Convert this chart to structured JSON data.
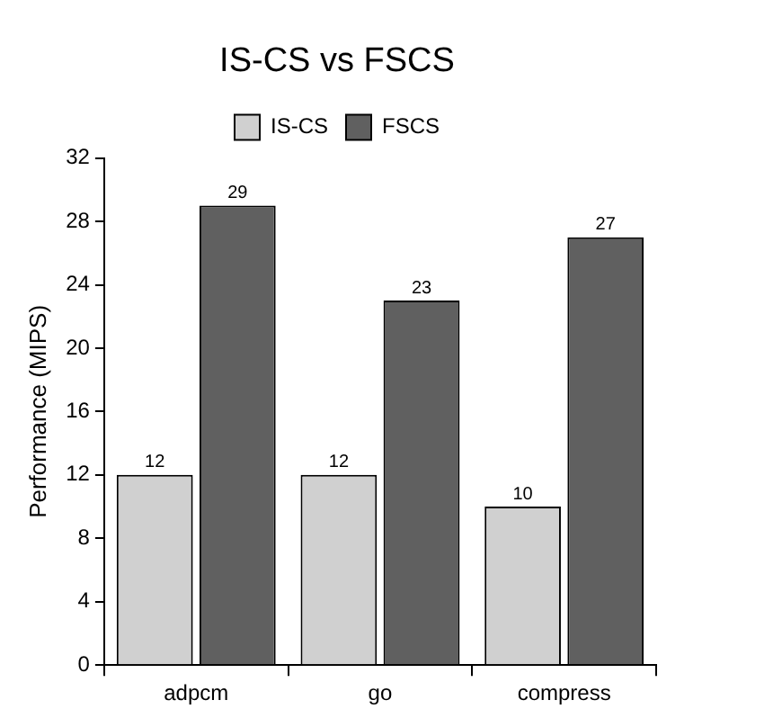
{
  "chart_data": {
    "type": "bar",
    "title": "IS-CS vs FSCS",
    "ylabel": "Performance (MIPS)",
    "categories": [
      "adpcm",
      "go",
      "compress"
    ],
    "series": [
      {
        "name": "IS-CS",
        "color": "#d0d0d0",
        "values": [
          12,
          12,
          10
        ]
      },
      {
        "name": "FSCS",
        "color": "#606060",
        "values": [
          29,
          23,
          27
        ]
      }
    ],
    "ylim": [
      0,
      32
    ],
    "yticks": [
      0,
      4,
      8,
      12,
      16,
      20,
      24,
      28,
      32
    ],
    "grid": false,
    "legend": "top",
    "data_labels": true
  }
}
